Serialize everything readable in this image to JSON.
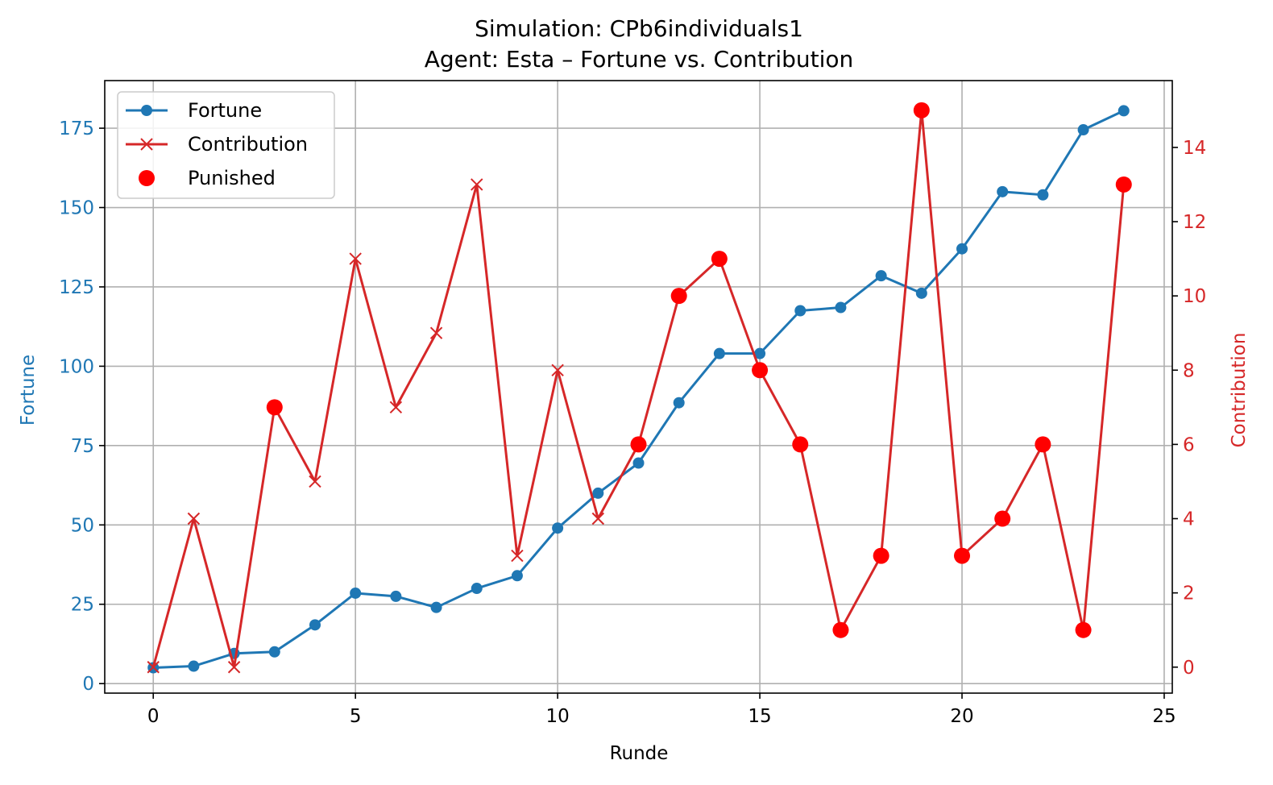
{
  "chart_data": {
    "type": "line",
    "title": "Simulation: CPb6individuals1",
    "subtitle": "Agent: Esta – Fortune vs. Contribution",
    "xlabel": "Runde",
    "ylabel_left": "Fortune",
    "ylabel_right": "Contribution",
    "xlim": [
      -1.2,
      25.2
    ],
    "ylim_left": [
      -3,
      190
    ],
    "ylim_right": [
      -0.7,
      15.8
    ],
    "xticks": [
      0,
      5,
      10,
      15,
      20,
      25
    ],
    "yticks_left": [
      0,
      25,
      50,
      75,
      100,
      125,
      150,
      175
    ],
    "yticks_right": [
      0,
      2,
      4,
      6,
      8,
      10,
      12,
      14
    ],
    "grid": true,
    "legend_position": "top-left",
    "colors": {
      "fortune": "#1f77b4",
      "contribution": "#d62728",
      "punished": "#ff0000"
    },
    "x": [
      0,
      1,
      2,
      3,
      4,
      5,
      6,
      7,
      8,
      9,
      10,
      11,
      12,
      13,
      14,
      15,
      16,
      17,
      18,
      19,
      20,
      21,
      22,
      23,
      24
    ],
    "series": [
      {
        "name": "Fortune",
        "axis": "left",
        "marker": "circle",
        "values": [
          5,
          5.5,
          9.5,
          10,
          18.5,
          28.5,
          27.5,
          24,
          30,
          34,
          49,
          60,
          69.5,
          88.5,
          104,
          104,
          117.5,
          118.5,
          128.5,
          123,
          137,
          155,
          154,
          174.5,
          180.5
        ]
      },
      {
        "name": "Contribution",
        "axis": "right",
        "marker": "x",
        "values": [
          0,
          4,
          0,
          7,
          5,
          11,
          7,
          9,
          13,
          3,
          8,
          4,
          6,
          10,
          11,
          8,
          6,
          1,
          3,
          15,
          3,
          4,
          6,
          1,
          13
        ]
      },
      {
        "name": "Punished",
        "axis": "right",
        "marker": "dot",
        "points": [
          [
            3,
            7
          ],
          [
            12,
            6
          ],
          [
            13,
            10
          ],
          [
            14,
            11
          ],
          [
            15,
            8
          ],
          [
            16,
            6
          ],
          [
            17,
            1
          ],
          [
            18,
            3
          ],
          [
            19,
            15
          ],
          [
            20,
            3
          ],
          [
            21,
            4
          ],
          [
            22,
            6
          ],
          [
            23,
            1
          ],
          [
            24,
            13
          ]
        ]
      }
    ]
  }
}
